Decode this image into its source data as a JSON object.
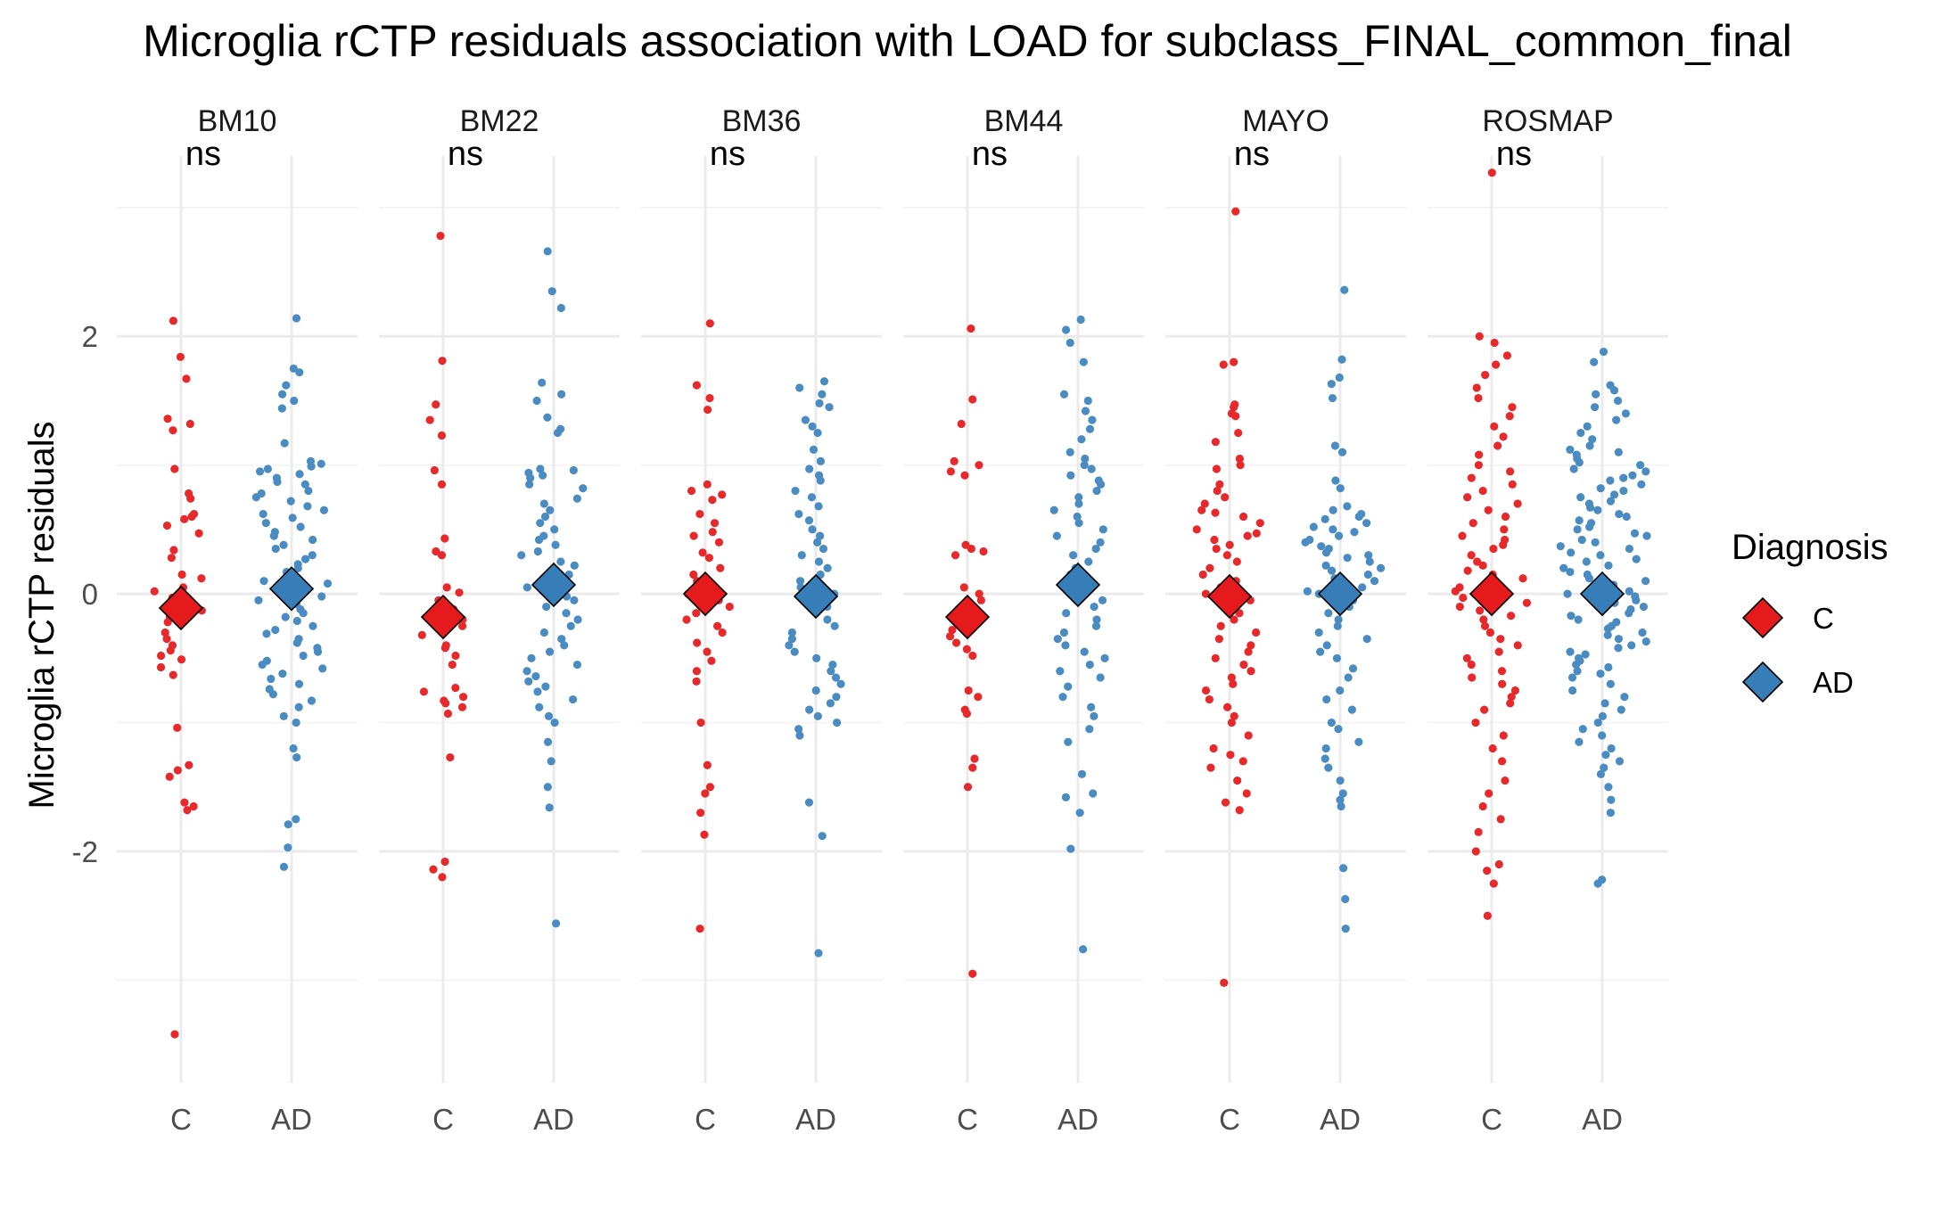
{
  "chart_data": {
    "type": "scatter",
    "title": "Microglia rCTP residuals association with LOAD for subclass_FINAL_common_final",
    "xlabel": "",
    "ylabel": "Microglia rCTP residuals",
    "ylim": [
      -3.8,
      3.4
    ],
    "y_ticks": [
      -2,
      0,
      2
    ],
    "y_tick_labels": [
      "-2",
      "0",
      "2"
    ],
    "categories": [
      "C",
      "AD"
    ],
    "grid": true,
    "legend": {
      "title": "Diagnosis",
      "position": "right",
      "entries": [
        {
          "label": "C",
          "color": "#E41A1C"
        },
        {
          "label": "AD",
          "color": "#377EB8"
        }
      ]
    },
    "colors": {
      "C": "#E41A1C",
      "AD": "#377EB8",
      "C_points": "#E8292B",
      "AD_points": "#4A8CC2"
    },
    "panels": [
      {
        "name": "BM10",
        "annotation": "ns",
        "series": [
          {
            "name": "C",
            "mean": -0.11,
            "values": [
              2.12,
              1.84,
              1.67,
              1.36,
              1.32,
              1.27,
              0.97,
              0.78,
              0.74,
              0.62,
              0.6,
              0.58,
              0.53,
              0.47,
              0.34,
              0.28,
              0.15,
              0.12,
              0.05,
              0.02,
              -0.03,
              -0.07,
              -0.13,
              -0.18,
              -0.22,
              -0.3,
              -0.35,
              -0.4,
              -0.44,
              -0.48,
              -0.51,
              -0.57,
              -0.63,
              -1.04,
              -1.33,
              -1.37,
              -1.42,
              -1.62,
              -1.65,
              -1.68,
              -3.42
            ]
          },
          {
            "name": "AD",
            "mean": 0.04,
            "values": [
              2.14,
              1.75,
              1.72,
              1.62,
              1.55,
              1.5,
              1.44,
              1.17,
              1.03,
              1.01,
              0.99,
              0.97,
              0.95,
              0.93,
              0.9,
              0.87,
              0.85,
              0.8,
              0.78,
              0.75,
              0.72,
              0.68,
              0.65,
              0.62,
              0.59,
              0.55,
              0.52,
              0.48,
              0.45,
              0.42,
              0.38,
              0.35,
              0.3,
              0.27,
              0.23,
              0.2,
              0.17,
              0.13,
              0.1,
              0.08,
              0.05,
              0.02,
              -0.02,
              -0.05,
              -0.08,
              -0.12,
              -0.15,
              -0.18,
              -0.21,
              -0.25,
              -0.28,
              -0.31,
              -0.35,
              -0.38,
              -0.42,
              -0.45,
              -0.48,
              -0.52,
              -0.55,
              -0.58,
              -0.62,
              -0.66,
              -0.7,
              -0.74,
              -0.78,
              -0.83,
              -0.88,
              -0.95,
              -1.0,
              -1.2,
              -1.27,
              -1.75,
              -1.79,
              -1.97,
              -2.12
            ]
          }
        ]
      },
      {
        "name": "BM22",
        "annotation": "ns",
        "series": [
          {
            "name": "C",
            "mean": -0.18,
            "values": [
              2.78,
              1.81,
              1.47,
              1.35,
              1.23,
              0.96,
              0.85,
              0.43,
              0.33,
              0.3,
              0.05,
              0.01,
              -0.05,
              -0.12,
              -0.2,
              -0.25,
              -0.32,
              -0.4,
              -0.42,
              -0.48,
              -0.55,
              -0.73,
              -0.76,
              -0.8,
              -0.83,
              -0.85,
              -0.88,
              -0.93,
              -1.27,
              -2.08,
              -2.14,
              -2.2
            ]
          },
          {
            "name": "AD",
            "mean": 0.07,
            "values": [
              2.66,
              2.35,
              2.22,
              1.64,
              1.55,
              1.5,
              1.37,
              1.28,
              1.25,
              0.97,
              0.96,
              0.94,
              0.92,
              0.9,
              0.85,
              0.82,
              0.74,
              0.7,
              0.65,
              0.6,
              0.55,
              0.5,
              0.45,
              0.42,
              0.38,
              0.33,
              0.3,
              0.25,
              0.22,
              0.18,
              0.15,
              0.12,
              0.08,
              0.05,
              0.02,
              -0.02,
              -0.05,
              -0.1,
              -0.15,
              -0.2,
              -0.25,
              -0.3,
              -0.35,
              -0.4,
              -0.45,
              -0.5,
              -0.55,
              -0.6,
              -0.64,
              -0.68,
              -0.72,
              -0.76,
              -0.82,
              -0.88,
              -0.95,
              -1.0,
              -1.15,
              -1.3,
              -1.5,
              -1.66,
              -2.56
            ]
          }
        ]
      },
      {
        "name": "BM36",
        "annotation": "ns",
        "series": [
          {
            "name": "C",
            "mean": 0.0,
            "values": [
              2.1,
              1.62,
              1.52,
              1.43,
              0.85,
              0.8,
              0.77,
              0.73,
              0.62,
              0.55,
              0.48,
              0.45,
              0.4,
              0.32,
              0.28,
              0.2,
              0.15,
              0.1,
              0.05,
              0.0,
              -0.05,
              -0.1,
              -0.15,
              -0.2,
              -0.25,
              -0.3,
              -0.38,
              -0.45,
              -0.52,
              -0.6,
              -0.68,
              -1.0,
              -1.33,
              -1.5,
              -1.55,
              -1.7,
              -1.87,
              -2.6
            ]
          },
          {
            "name": "AD",
            "mean": -0.02,
            "values": [
              1.65,
              1.6,
              1.55,
              1.48,
              1.45,
              1.35,
              1.3,
              1.25,
              1.12,
              1.03,
              0.97,
              0.92,
              0.88,
              0.8,
              0.75,
              0.68,
              0.62,
              0.57,
              0.5,
              0.45,
              0.4,
              0.35,
              0.3,
              0.25,
              0.2,
              0.15,
              0.1,
              0.05,
              0.0,
              -0.05,
              -0.1,
              -0.15,
              -0.2,
              -0.25,
              -0.3,
              -0.35,
              -0.4,
              -0.45,
              -0.5,
              -0.55,
              -0.6,
              -0.65,
              -0.7,
              -0.75,
              -0.8,
              -0.85,
              -0.9,
              -0.95,
              -1.0,
              -1.05,
              -1.1,
              -1.62,
              -1.88,
              -2.79
            ]
          }
        ]
      },
      {
        "name": "BM44",
        "annotation": "ns",
        "series": [
          {
            "name": "C",
            "mean": -0.18,
            "values": [
              2.06,
              1.51,
              1.32,
              1.03,
              1.0,
              0.95,
              0.92,
              0.38,
              0.35,
              0.33,
              0.3,
              0.05,
              0.0,
              -0.05,
              -0.12,
              -0.2,
              -0.28,
              -0.33,
              -0.38,
              -0.43,
              -0.48,
              -0.75,
              -0.8,
              -0.9,
              -0.93,
              -1.28,
              -1.35,
              -1.5,
              -2.95
            ]
          },
          {
            "name": "AD",
            "mean": 0.07,
            "values": [
              2.13,
              2.05,
              1.95,
              1.8,
              1.55,
              1.5,
              1.42,
              1.35,
              1.28,
              1.2,
              1.1,
              1.05,
              1.0,
              0.97,
              0.92,
              0.88,
              0.85,
              0.8,
              0.75,
              0.7,
              0.65,
              0.6,
              0.55,
              0.5,
              0.45,
              0.4,
              0.35,
              0.3,
              0.25,
              0.2,
              0.15,
              0.1,
              0.05,
              0.0,
              -0.05,
              -0.1,
              -0.15,
              -0.2,
              -0.25,
              -0.3,
              -0.35,
              -0.4,
              -0.45,
              -0.5,
              -0.55,
              -0.6,
              -0.65,
              -0.72,
              -0.8,
              -0.88,
              -0.95,
              -1.05,
              -1.15,
              -1.4,
              -1.55,
              -1.58,
              -1.7,
              -1.98,
              -2.76
            ]
          }
        ]
      },
      {
        "name": "MAYO",
        "annotation": "ns",
        "series": [
          {
            "name": "C",
            "mean": -0.02,
            "values": [
              2.97,
              1.8,
              1.78,
              1.47,
              1.45,
              1.4,
              1.38,
              1.25,
              1.18,
              1.05,
              1.0,
              0.97,
              0.85,
              0.8,
              0.75,
              0.7,
              0.65,
              0.63,
              0.6,
              0.55,
              0.5,
              0.47,
              0.45,
              0.42,
              0.38,
              0.35,
              0.3,
              0.25,
              0.2,
              0.15,
              0.1,
              0.05,
              0.0,
              -0.05,
              -0.1,
              -0.15,
              -0.2,
              -0.25,
              -0.3,
              -0.35,
              -0.4,
              -0.45,
              -0.5,
              -0.55,
              -0.6,
              -0.65,
              -0.7,
              -0.75,
              -0.82,
              -0.88,
              -0.95,
              -1.0,
              -1.1,
              -1.2,
              -1.25,
              -1.3,
              -1.35,
              -1.45,
              -1.55,
              -1.62,
              -1.68,
              -3.02
            ]
          },
          {
            "name": "AD",
            "mean": 0.0,
            "values": [
              2.36,
              1.82,
              1.68,
              1.63,
              1.52,
              1.15,
              1.1,
              0.88,
              0.82,
              0.68,
              0.65,
              0.62,
              0.6,
              0.58,
              0.55,
              0.52,
              0.5,
              0.48,
              0.45,
              0.42,
              0.4,
              0.37,
              0.35,
              0.32,
              0.3,
              0.28,
              0.25,
              0.22,
              0.2,
              0.18,
              0.15,
              0.12,
              0.1,
              0.07,
              0.05,
              0.02,
              0.0,
              -0.05,
              -0.1,
              -0.15,
              -0.2,
              -0.25,
              -0.3,
              -0.35,
              -0.4,
              -0.45,
              -0.5,
              -0.58,
              -0.65,
              -0.75,
              -0.82,
              -0.9,
              -1.0,
              -1.05,
              -1.15,
              -1.2,
              -1.28,
              -1.35,
              -1.45,
              -1.55,
              -1.6,
              -1.65,
              -2.13,
              -2.37,
              -2.6
            ]
          }
        ]
      },
      {
        "name": "ROSMAP",
        "annotation": "ns",
        "series": [
          {
            "name": "C",
            "mean": 0.0,
            "values": [
              3.27,
              2.0,
              1.95,
              1.85,
              1.78,
              1.7,
              1.6,
              1.52,
              1.45,
              1.38,
              1.3,
              1.22,
              1.15,
              1.08,
              1.0,
              0.95,
              0.9,
              0.85,
              0.8,
              0.75,
              0.7,
              0.65,
              0.6,
              0.55,
              0.5,
              0.45,
              0.42,
              0.38,
              0.35,
              0.3,
              0.25,
              0.22,
              0.18,
              0.15,
              0.12,
              0.08,
              0.05,
              0.02,
              0.0,
              -0.03,
              -0.07,
              -0.1,
              -0.13,
              -0.17,
              -0.2,
              -0.25,
              -0.3,
              -0.35,
              -0.4,
              -0.45,
              -0.5,
              -0.55,
              -0.6,
              -0.65,
              -0.7,
              -0.75,
              -0.8,
              -0.85,
              -0.9,
              -1.0,
              -1.1,
              -1.2,
              -1.3,
              -1.45,
              -1.55,
              -1.65,
              -1.75,
              -1.85,
              -2.0,
              -2.1,
              -2.15,
              -2.25,
              -2.5
            ]
          },
          {
            "name": "AD",
            "mean": 0.0,
            "values": [
              1.88,
              1.8,
              1.62,
              1.58,
              1.55,
              1.5,
              1.45,
              1.4,
              1.35,
              1.3,
              1.25,
              1.2,
              1.15,
              1.12,
              1.1,
              1.08,
              1.05,
              1.02,
              1.0,
              0.97,
              0.95,
              0.92,
              0.9,
              0.88,
              0.85,
              0.82,
              0.8,
              0.77,
              0.75,
              0.72,
              0.7,
              0.67,
              0.65,
              0.62,
              0.6,
              0.57,
              0.55,
              0.52,
              0.5,
              0.47,
              0.45,
              0.42,
              0.4,
              0.37,
              0.35,
              0.32,
              0.3,
              0.27,
              0.25,
              0.22,
              0.2,
              0.17,
              0.15,
              0.12,
              0.1,
              0.07,
              0.05,
              0.02,
              0.0,
              -0.02,
              -0.05,
              -0.07,
              -0.1,
              -0.12,
              -0.15,
              -0.17,
              -0.2,
              -0.22,
              -0.25,
              -0.27,
              -0.3,
              -0.32,
              -0.35,
              -0.37,
              -0.4,
              -0.42,
              -0.45,
              -0.47,
              -0.5,
              -0.52,
              -0.55,
              -0.57,
              -0.6,
              -0.62,
              -0.65,
              -0.7,
              -0.75,
              -0.8,
              -0.85,
              -0.9,
              -0.95,
              -1.0,
              -1.05,
              -1.1,
              -1.15,
              -1.2,
              -1.25,
              -1.3,
              -1.35,
              -1.4,
              -1.5,
              -1.6,
              -1.7,
              -2.22,
              -2.25
            ]
          }
        ]
      }
    ]
  }
}
